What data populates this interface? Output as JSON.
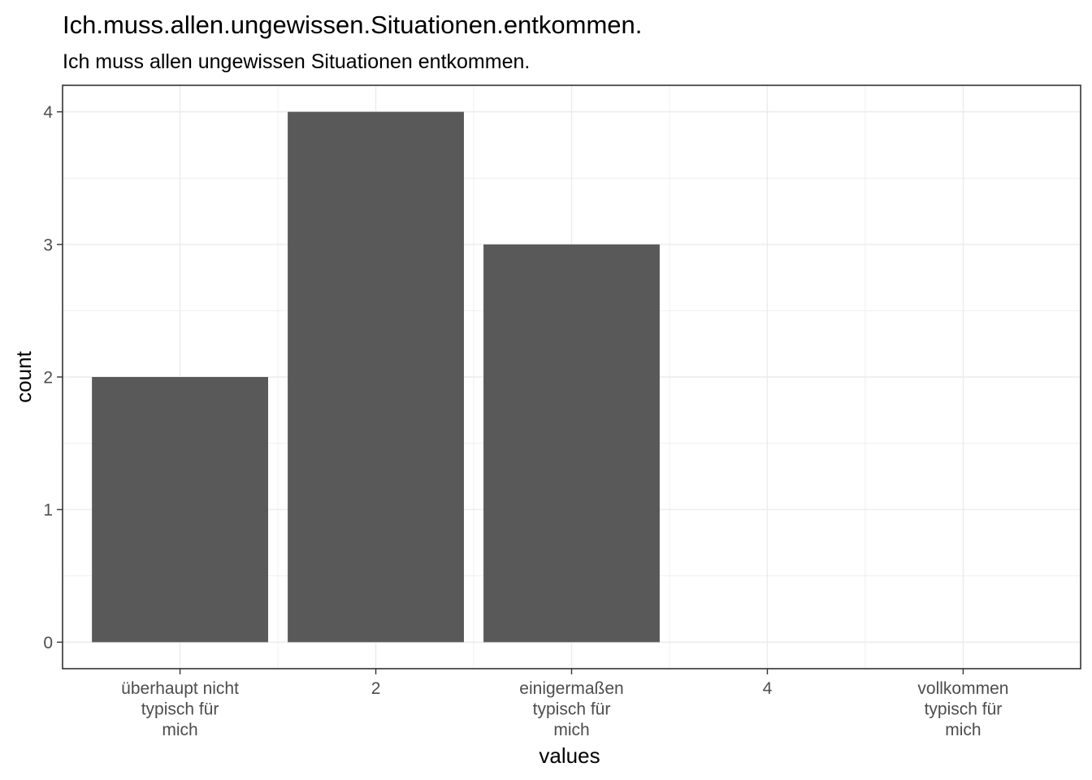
{
  "chart_data": {
    "type": "bar",
    "title": "Ich.muss.allen.ungewissen.Situationen.entkommen.",
    "subtitle": "Ich muss allen ungewissen Situationen entkommen.",
    "xlabel": "values",
    "ylabel": "count",
    "categories": [
      [
        "überhaupt nicht",
        "typisch für",
        "mich"
      ],
      [
        "2"
      ],
      [
        "einigermaßen",
        "typisch für",
        "mich"
      ],
      [
        "4"
      ],
      [
        "vollkommen",
        "typisch für",
        "mich"
      ]
    ],
    "values": [
      2,
      4,
      3,
      0,
      0
    ],
    "yticks": [
      "0",
      "1",
      "2",
      "3",
      "4"
    ],
    "ylim": [
      0,
      4
    ],
    "grid": true,
    "bar_color": "#595959"
  }
}
